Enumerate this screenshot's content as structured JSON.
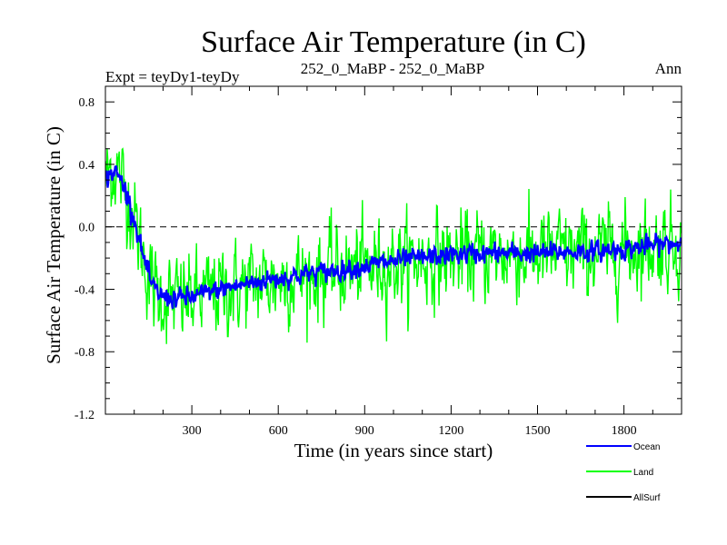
{
  "chart_data": {
    "type": "line",
    "title": "Surface Air Temperature (in C)",
    "subtitle_left": "Expt = teyDy1-teyDy",
    "subtitle_center": "252_0_MaBP - 252_0_MaBP",
    "subtitle_right": "Ann",
    "xlabel": "Time (in years since start)",
    "ylabel": "Surface Air Temperature (in C)",
    "xlim": [
      0,
      2000
    ],
    "ylim": [
      -1.2,
      0.9
    ],
    "x_ticks": [
      300,
      600,
      900,
      1200,
      1500,
      1800
    ],
    "x_tick_labels": [
      "300",
      "600",
      "900",
      "1200",
      "1500",
      "1800"
    ],
    "y_ticks": [
      -1.2,
      -0.8,
      -0.4,
      0.0,
      0.4,
      0.8
    ],
    "y_tick_labels": [
      "-1.2",
      "-0.8",
      "-0.4",
      "0.0",
      "0.4",
      "0.8"
    ],
    "reference_line": 0.0,
    "legend_position": "bottom-right",
    "series": [
      {
        "name": "Ocean",
        "color": "#0000ff",
        "trend_x": [
          0,
          20,
          40,
          60,
          80,
          100,
          130,
          160,
          200,
          250,
          300,
          400,
          500,
          600,
          700,
          800,
          900,
          1000,
          1100,
          1200,
          1300,
          1400,
          1500,
          1600,
          1700,
          1800,
          1900,
          2000
        ],
        "trend_y": [
          0.3,
          0.35,
          0.34,
          0.28,
          0.18,
          0.05,
          -0.18,
          -0.38,
          -0.45,
          -0.46,
          -0.45,
          -0.4,
          -0.36,
          -0.33,
          -0.3,
          -0.28,
          -0.25,
          -0.22,
          -0.2,
          -0.18,
          -0.17,
          -0.17,
          -0.17,
          -0.16,
          -0.16,
          -0.14,
          -0.12,
          -0.1
        ],
        "noise_amplitude": 0.05
      },
      {
        "name": "Land",
        "color": "#00ff00",
        "trend_x": [
          0,
          20,
          40,
          60,
          80,
          100,
          130,
          160,
          200,
          250,
          300,
          400,
          500,
          600,
          700,
          800,
          900,
          1000,
          1100,
          1200,
          1300,
          1400,
          1500,
          1600,
          1700,
          1800,
          1900,
          2000
        ],
        "trend_y": [
          0.3,
          0.38,
          0.36,
          0.28,
          0.18,
          0.05,
          -0.18,
          -0.38,
          -0.46,
          -0.47,
          -0.46,
          -0.41,
          -0.37,
          -0.34,
          -0.31,
          -0.29,
          -0.26,
          -0.23,
          -0.21,
          -0.19,
          -0.18,
          -0.18,
          -0.18,
          -0.17,
          -0.17,
          -0.14,
          -0.12,
          -0.1
        ],
        "noise_amplitude": 0.22
      },
      {
        "name": "AllSurf",
        "color": "#000000",
        "trend_x": [],
        "trend_y": [],
        "noise_amplitude": 0
      }
    ]
  }
}
